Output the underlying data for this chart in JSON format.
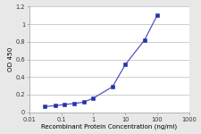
{
  "x": [
    0.031,
    0.063,
    0.125,
    0.25,
    0.5,
    1.0,
    4.0,
    10.0,
    40.0,
    100.0
  ],
  "y": [
    0.065,
    0.075,
    0.088,
    0.1,
    0.115,
    0.16,
    0.29,
    0.54,
    0.82,
    1.1
  ],
  "line_color": "#5555bb",
  "marker_color": "#2233aa",
  "xlabel": "Recombinant Protein Concentration (ng/ml)",
  "ylabel": "OD 450",
  "xlim": [
    0.01,
    1000
  ],
  "ylim": [
    0,
    1.2
  ],
  "yticks": [
    0,
    0.2,
    0.4,
    0.6,
    0.8,
    1.0,
    1.2
  ],
  "xticks": [
    0.01,
    0.1,
    1,
    10,
    100,
    1000
  ],
  "xtick_labels": [
    "0.01",
    "0.1",
    "1",
    "10",
    "100",
    "1000"
  ],
  "bg_color": "#e8e8e8",
  "plot_bg_color": "#ffffff",
  "xlabel_fontsize": 5.0,
  "ylabel_fontsize": 5.2,
  "tick_fontsize": 4.8,
  "grid_color": "#bbbbbb",
  "linewidth": 0.9,
  "markersize": 2.5
}
